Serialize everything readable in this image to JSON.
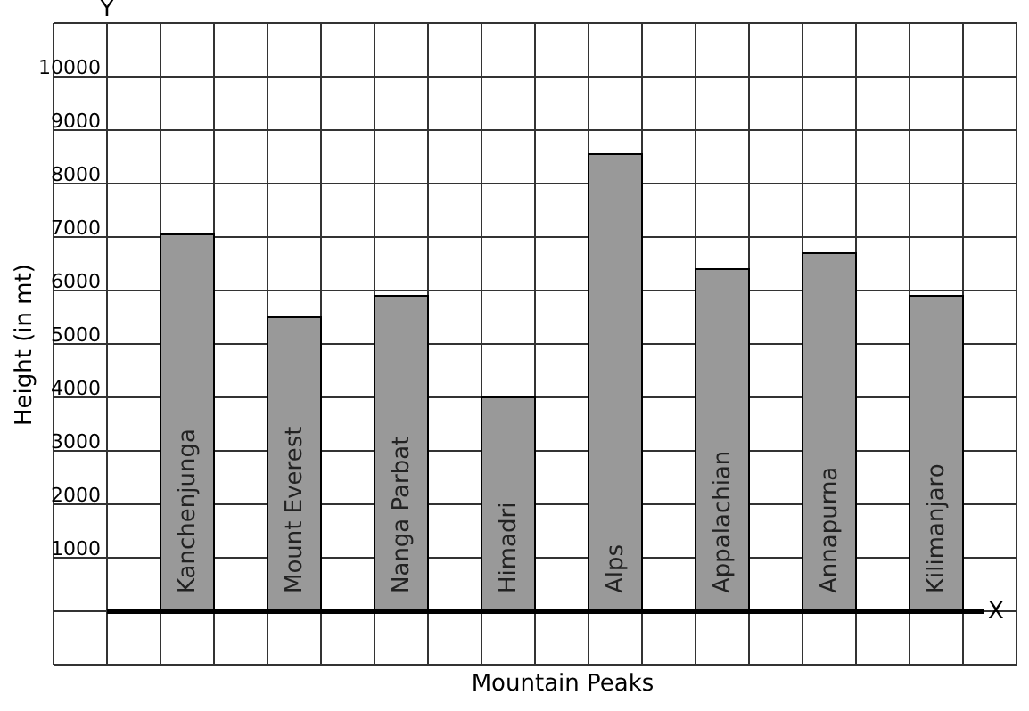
{
  "chart_data": {
    "type": "bar",
    "categories": [
      "Kanchenjunga",
      "Mount Everest",
      "Nanga Parbat",
      "Himadri",
      "Alps",
      "Appalachian",
      "Annapurna",
      "Kilimanjaro"
    ],
    "values": [
      7050,
      5500,
      5900,
      4000,
      8550,
      6400,
      6700,
      5900
    ],
    "color": "#999999",
    "xlabel": "Mountain Peaks",
    "ylabel": "Height (in mt)",
    "ylim": [
      -1000,
      11000
    ],
    "yticks": [
      {
        "value": 0,
        "label": null
      },
      1000,
      2000,
      3000,
      4000,
      5000,
      6000,
      7000,
      8000,
      9000,
      10000
    ],
    "grid": true,
    "annotations": [
      "X",
      "Y"
    ]
  }
}
